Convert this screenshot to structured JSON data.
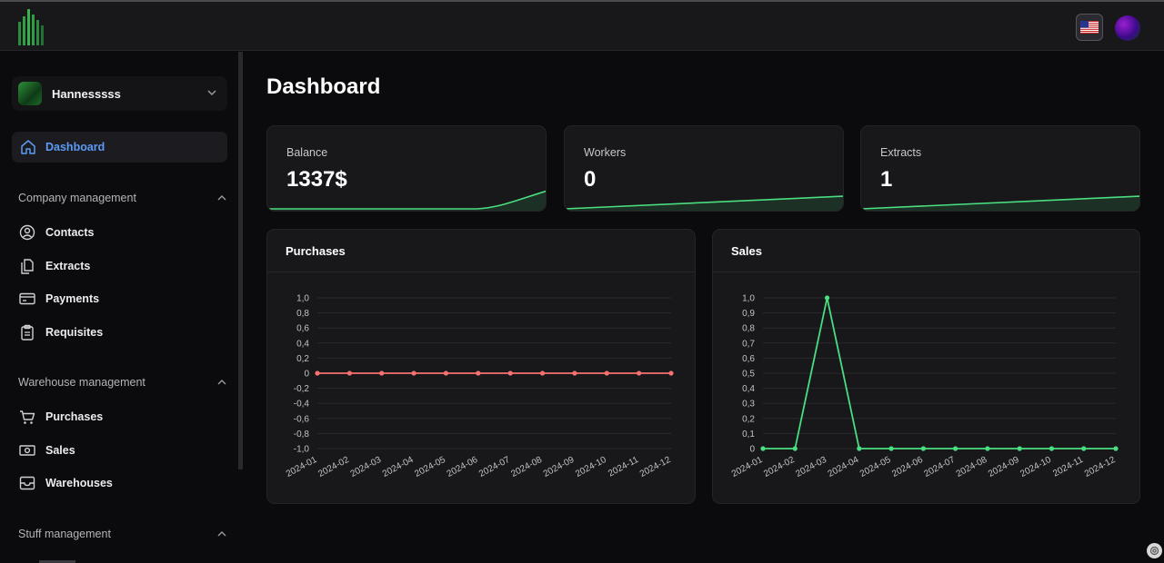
{
  "topbar": {
    "logo_icon": "bar-logo-icon",
    "language_icon": "us-flag-icon",
    "profile_icon": "profile-avatar"
  },
  "sidebar": {
    "user": {
      "name": "Hannesssss"
    },
    "active": {
      "label": "Dashboard",
      "icon": "home-icon"
    },
    "sections": [
      {
        "label": "Company management",
        "items": [
          {
            "label": "Contacts",
            "icon": "contact-icon"
          },
          {
            "label": "Extracts",
            "icon": "documents-icon"
          },
          {
            "label": "Payments",
            "icon": "card-icon"
          },
          {
            "label": "Requisites",
            "icon": "clipboard-icon"
          }
        ]
      },
      {
        "label": "Warehouse management",
        "items": [
          {
            "label": "Purchases",
            "icon": "cart-icon"
          },
          {
            "label": "Sales",
            "icon": "cash-icon"
          },
          {
            "label": "Warehouses",
            "icon": "archive-icon"
          }
        ]
      },
      {
        "label": "Stuff management",
        "items": []
      }
    ]
  },
  "main": {
    "title": "Dashboard",
    "stats": [
      {
        "label": "Balance",
        "value": "1337$"
      },
      {
        "label": "Workers",
        "value": "0"
      },
      {
        "label": "Extracts",
        "value": "1"
      }
    ]
  },
  "colors": {
    "accent_blue": "#5b9bf5",
    "green": "#4ade80",
    "red": "#f87171"
  },
  "chart_data": [
    {
      "type": "line",
      "title": "Purchases",
      "categories": [
        "2024-01",
        "2024-02",
        "2024-03",
        "2024-04",
        "2024-05",
        "2024-06",
        "2024-07",
        "2024-08",
        "2024-09",
        "2024-10",
        "2024-11",
        "2024-12"
      ],
      "values": [
        0,
        0,
        0,
        0,
        0,
        0,
        0,
        0,
        0,
        0,
        0,
        0
      ],
      "y_ticks": [
        "1,0",
        "0,8",
        "0,6",
        "0,4",
        "0,2",
        "0",
        "-0,2",
        "-0,4",
        "-0,6",
        "-0,8",
        "-1,0"
      ],
      "ylim": [
        -1,
        1
      ],
      "color": "#f87171"
    },
    {
      "type": "line",
      "title": "Sales",
      "categories": [
        "2024-01",
        "2024-02",
        "2024-03",
        "2024-04",
        "2024-05",
        "2024-06",
        "2024-07",
        "2024-08",
        "2024-09",
        "2024-10",
        "2024-11",
        "2024-12"
      ],
      "values": [
        0,
        0,
        1,
        0,
        0,
        0,
        0,
        0,
        0,
        0,
        0,
        0
      ],
      "y_ticks": [
        "1,0",
        "0,9",
        "0,8",
        "0,7",
        "0,6",
        "0,5",
        "0,4",
        "0,3",
        "0,2",
        "0,1",
        "0"
      ],
      "ylim": [
        0,
        1
      ],
      "color": "#4ade80"
    }
  ]
}
